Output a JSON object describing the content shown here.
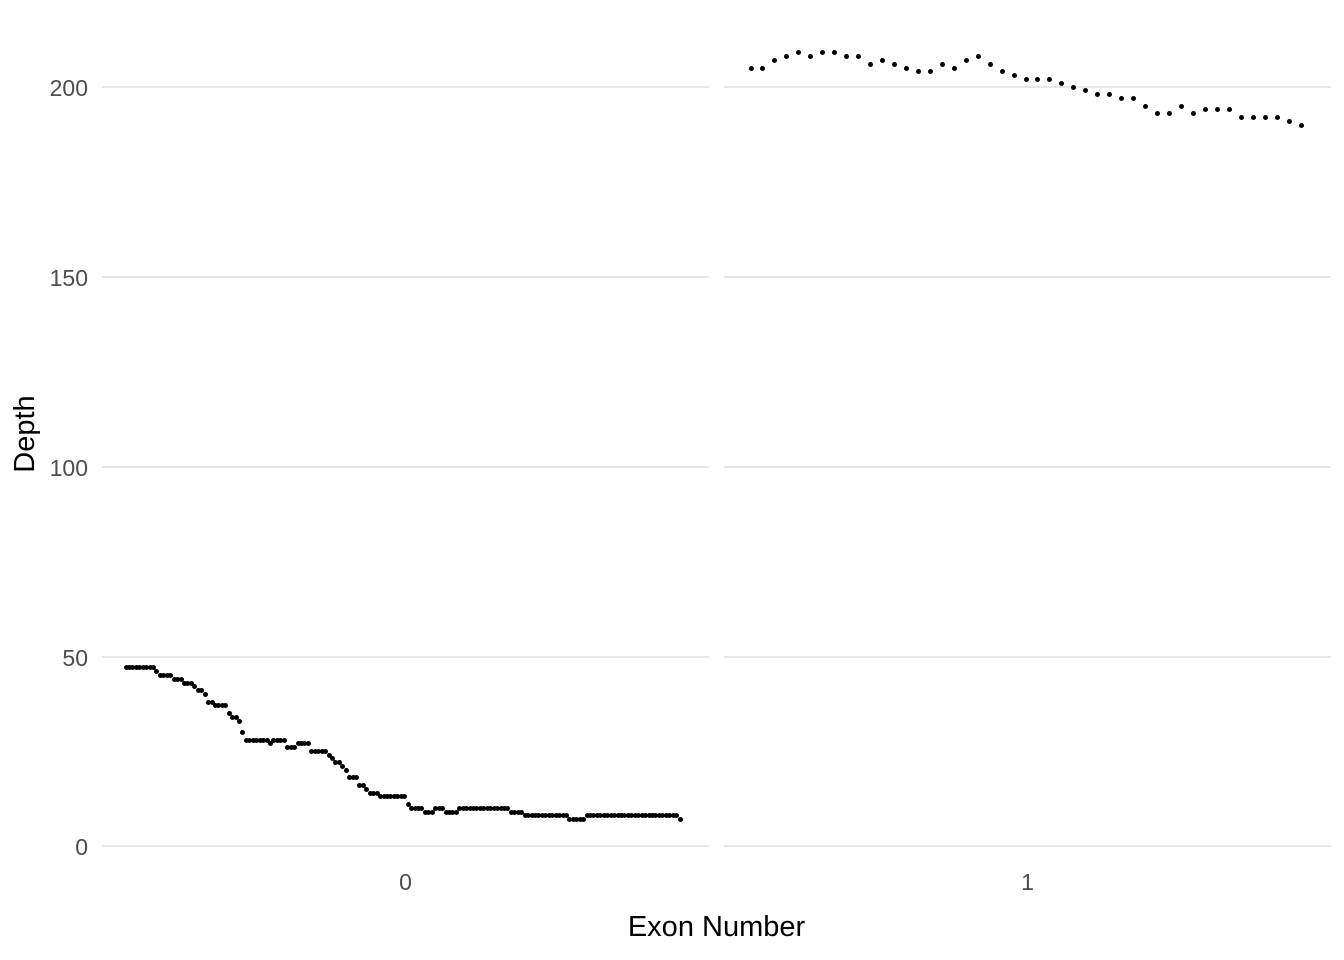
{
  "page": {
    "background": "#ffffff"
  },
  "colors": {
    "point": "#000000",
    "gridline": "#e7e7e7",
    "tick_label": "#4d4d4d",
    "axis_title": "#000000"
  },
  "chart_data": {
    "type": "scatter",
    "title": "",
    "xlabel": "Exon Number",
    "ylabel": "Depth",
    "legend": "none",
    "grid": "major-y-only",
    "y_axis": {
      "ticks": [
        0,
        50,
        100,
        150,
        200
      ],
      "range": [
        0,
        212
      ]
    },
    "facets": [
      {
        "label": "0",
        "x_tick_label": "0",
        "n_points": 162,
        "depths": [
          47,
          47,
          47,
          47,
          47,
          47,
          47,
          47,
          47,
          46,
          45,
          45,
          45,
          45,
          44,
          44,
          44,
          43,
          43,
          43,
          42,
          41,
          41,
          40,
          38,
          38,
          37,
          37,
          37,
          37,
          35,
          34,
          34,
          33,
          30,
          28,
          28,
          28,
          28,
          28,
          28,
          28,
          27,
          28,
          28,
          28,
          28,
          26,
          26,
          26,
          27,
          27,
          27,
          27,
          25,
          25,
          25,
          25,
          25,
          24,
          23,
          22,
          22,
          21,
          20,
          18,
          18,
          18,
          16,
          16,
          15,
          14,
          14,
          14,
          13,
          13,
          13,
          13,
          13,
          13,
          13,
          13,
          11,
          10,
          10,
          10,
          10,
          9,
          9,
          9,
          10,
          10,
          10,
          9,
          9,
          9,
          9,
          10,
          10,
          10,
          10,
          10,
          10,
          10,
          10,
          10,
          10,
          10,
          10,
          10,
          10,
          10,
          9,
          9,
          9,
          9,
          8,
          8,
          8,
          8,
          8,
          8,
          8,
          8,
          8,
          8,
          8,
          8,
          8,
          7,
          7,
          7,
          7,
          7,
          8,
          8,
          8,
          8,
          8,
          8,
          8,
          8,
          8,
          8,
          8,
          8,
          8,
          8,
          8,
          8,
          8,
          8,
          8,
          8,
          8,
          8,
          8,
          8,
          8,
          8,
          8,
          7
        ]
      },
      {
        "label": "1",
        "x_tick_label": "1",
        "n_points": 47,
        "depths": [
          205,
          205,
          207,
          208,
          209,
          208,
          209,
          209,
          208,
          208,
          206,
          207,
          206,
          205,
          204,
          204,
          206,
          205,
          207,
          208,
          206,
          204,
          203,
          202,
          202,
          202,
          201,
          200,
          199,
          198,
          198,
          197,
          197,
          195,
          193,
          193,
          195,
          193,
          194,
          194,
          194,
          192,
          192,
          192,
          192,
          191,
          190
        ]
      }
    ]
  }
}
